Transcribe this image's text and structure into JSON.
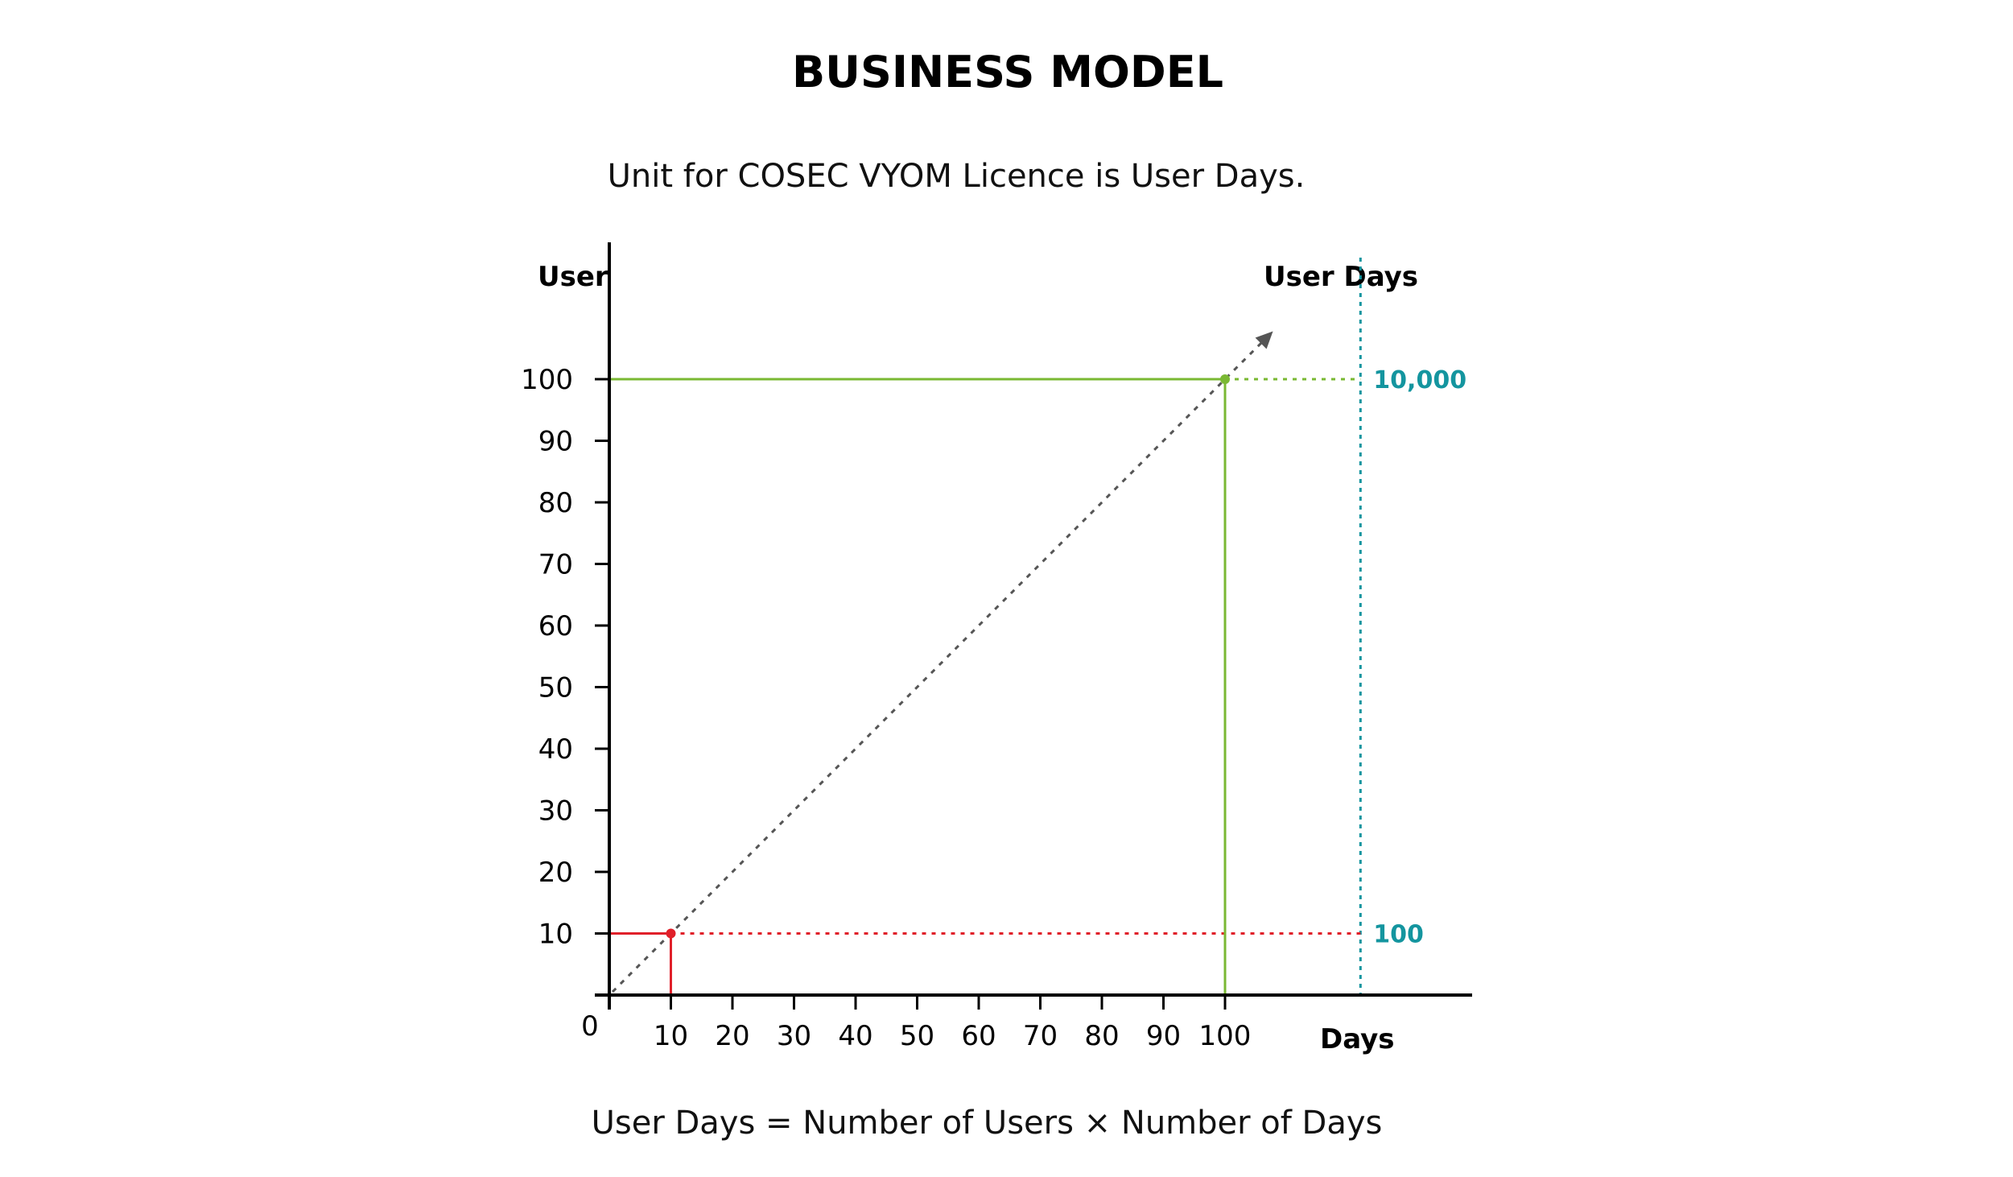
{
  "title": "BUSINESS MODEL",
  "subtitle": "Unit for COSEC VYOM Licence is User Days.",
  "formula": "User Days = Number of Users × Number of Days",
  "chart_data": {
    "type": "line",
    "ylabel": "User",
    "xlabel": "Days",
    "secondary_label": "User Days",
    "origin_label": "0",
    "x_ticks": [
      10,
      20,
      30,
      40,
      50,
      60,
      70,
      80,
      90,
      100
    ],
    "y_ticks": [
      10,
      20,
      30,
      40,
      50,
      60,
      70,
      80,
      90,
      100
    ],
    "xlim": [
      0,
      130
    ],
    "ylim": [
      0,
      120
    ],
    "trend_line": {
      "from": [
        0,
        0
      ],
      "to": [
        107,
        107
      ],
      "style": "dotted-arrow",
      "color": "#555555"
    },
    "points": [
      {
        "x": 10,
        "y": 10,
        "color": "#e0202a",
        "user_days_label": "100"
      },
      {
        "x": 100,
        "y": 100,
        "color": "#7ab833",
        "user_days_label": "10,000"
      }
    ],
    "user_days_axis_color": "#14959f",
    "grid": false
  }
}
